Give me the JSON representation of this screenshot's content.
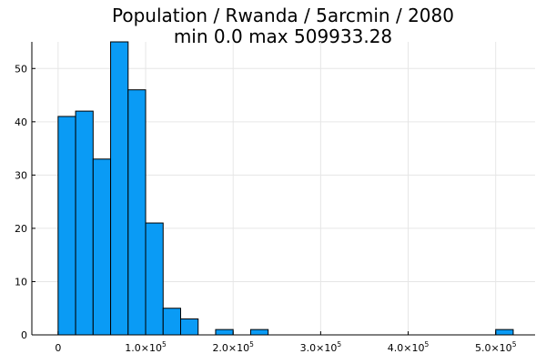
{
  "chart_data": {
    "type": "bar",
    "title": "Population / Rwanda / 5arcmin / 2080",
    "subtitle": "min 0.0  max 509933.28",
    "xlabel": "",
    "ylabel": "",
    "bar_color": "#0a9bf5",
    "bin_width": 20000,
    "bins": [
      {
        "x0": 0,
        "x1": 20000,
        "count": 41
      },
      {
        "x0": 20000,
        "x1": 40000,
        "count": 42
      },
      {
        "x0": 40000,
        "x1": 60000,
        "count": 33
      },
      {
        "x0": 60000,
        "x1": 80000,
        "count": 55
      },
      {
        "x0": 80000,
        "x1": 100000,
        "count": 46
      },
      {
        "x0": 100000,
        "x1": 120000,
        "count": 21
      },
      {
        "x0": 120000,
        "x1": 140000,
        "count": 5
      },
      {
        "x0": 140000,
        "x1": 160000,
        "count": 3
      },
      {
        "x0": 180000,
        "x1": 200000,
        "count": 1
      },
      {
        "x0": 220000,
        "x1": 240000,
        "count": 1
      },
      {
        "x0": 500000,
        "x1": 520000,
        "count": 1
      }
    ],
    "xlim": [
      -30000,
      545000
    ],
    "ylim": [
      0,
      55
    ],
    "x_ticks": [
      {
        "value": 0,
        "mantissa": "0",
        "exponent": ""
      },
      {
        "value": 100000,
        "mantissa": "1.0×10",
        "exponent": "5"
      },
      {
        "value": 200000,
        "mantissa": "2.0×10",
        "exponent": "5"
      },
      {
        "value": 300000,
        "mantissa": "3.0×10",
        "exponent": "5"
      },
      {
        "value": 400000,
        "mantissa": "4.0×10",
        "exponent": "5"
      },
      {
        "value": 500000,
        "mantissa": "5.0×10",
        "exponent": "5"
      }
    ],
    "y_ticks": [
      0,
      10,
      20,
      30,
      40,
      50
    ],
    "grid": true,
    "legend": "none"
  }
}
